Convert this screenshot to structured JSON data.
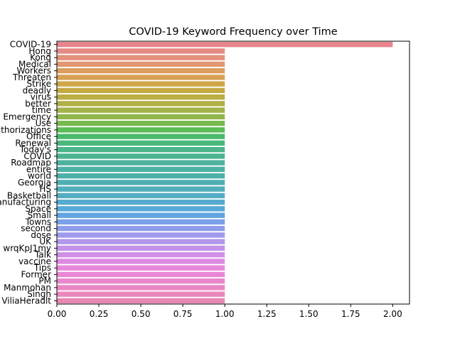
{
  "chart_data": {
    "type": "bar",
    "orientation": "horizontal",
    "title": "COVID-19 Keyword Frequency over Time",
    "xlabel": "",
    "ylabel": "",
    "xlim": [
      0,
      2.1
    ],
    "xticks": [
      "0.00",
      "0.25",
      "0.50",
      "0.75",
      "1.00",
      "1.25",
      "1.50",
      "1.75",
      "2.00"
    ],
    "grid": false,
    "categories": [
      "COVID-19",
      "Hong",
      "Kong",
      "Medical",
      "Workers",
      "Threaten",
      "Strike",
      "deadly",
      "virus",
      "better",
      "time",
      "Emergency",
      "Use",
      "Authorizations",
      "Office",
      "Renewal",
      "Today's",
      "COVID",
      "Roadmap",
      "entire",
      "world",
      "Georgia",
      "HS",
      "Basketball",
      "Manufacturing",
      "Space",
      "Small",
      "Towns",
      "second",
      "dose",
      "UK",
      "wrqKpJ1my",
      "Talk",
      "vaccine",
      "Tips",
      "Former",
      "PM",
      "Manmohan",
      "Singh",
      "ViliaHeradlt"
    ],
    "values": [
      2,
      1,
      1,
      1,
      1,
      1,
      1,
      1,
      1,
      1,
      1,
      1,
      1,
      1,
      1,
      1,
      1,
      1,
      1,
      1,
      1,
      1,
      1,
      1,
      1,
      1,
      1,
      1,
      1,
      1,
      1,
      1,
      1,
      1,
      1,
      1,
      1,
      1,
      1,
      1
    ],
    "colors": [
      "#e8848c",
      "#e68a83",
      "#e4907a",
      "#e1976f",
      "#dd9d61",
      "#d8a254",
      "#cea648",
      "#c5aa44",
      "#bcad44",
      "#b1b046",
      "#a3b349",
      "#92b64c",
      "#79ba4f",
      "#5bbd54",
      "#4aba6c",
      "#4ab77c",
      "#4bb588",
      "#4cb492",
      "#4db29b",
      "#4eb1a3",
      "#4fb0aa",
      "#50afb2",
      "#51aeba",
      "#53adc3",
      "#55abcd",
      "#58a8d8",
      "#62a4e2",
      "#7aa0e8",
      "#8e9ceb",
      "#a09aec",
      "#b297eb",
      "#c393ea",
      "#d28fe7",
      "#de8ae3",
      "#e688dc",
      "#e987d4",
      "#e987cc",
      "#e987c4",
      "#e987bb",
      "#e887b2"
    ]
  }
}
